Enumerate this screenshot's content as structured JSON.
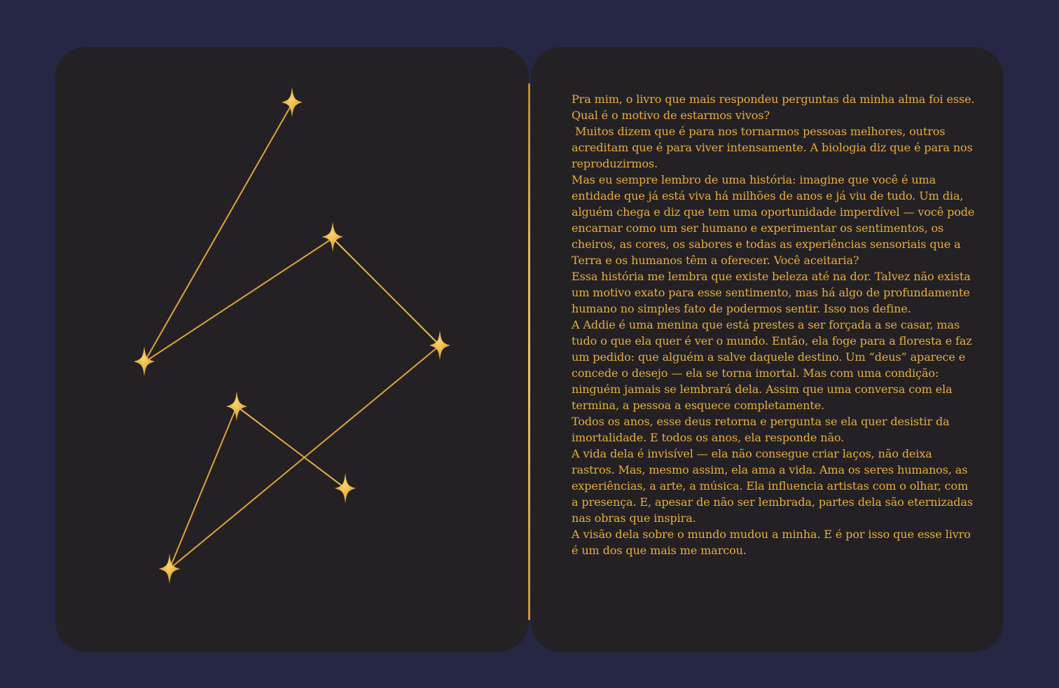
{
  "colors": {
    "background": "#262745",
    "page": "#242124",
    "gold": "#e3ad3f",
    "gold_light": "#f3c65a",
    "gold_dark": "#c08a2c"
  },
  "constellation": {
    "icon": "four-point-star-icon",
    "star_count": 7
  },
  "review": {
    "paragraphs": [
      "Pra mim, o livro que mais respondeu perguntas da minha alma foi esse.",
      "Qual é o motivo de estarmos vivos?",
      " Muitos dizem que é para nos tornarmos pessoas melhores, outros acreditam que é para viver intensamente. A biologia diz que é para nos reproduzirmos.",
      "Mas eu sempre lembro de uma história: imagine que você é uma entidade que já está viva há milhões de anos e já viu de tudo. Um dia, alguém chega e diz que tem uma oportunidade imperdível — você pode encarnar como um ser humano e experimentar os sentimentos, os cheiros, as cores, os sabores e todas as experiências sensoriais que a Terra e os humanos têm a oferecer. Você aceitaria?",
      "Essa história me lembra que existe beleza até na dor. Talvez não exista um motivo exato para esse sentimento, mas há algo de profundamente humano no simples fato de podermos sentir. Isso nos define.",
      "A Addie é uma menina que está prestes a ser forçada a se casar, mas tudo o que ela quer é ver o mundo. Então, ela foge para a floresta e faz um pedido: que alguém a salve daquele destino. Um “deus” aparece e concede o desejo — ela se torna imortal. Mas com uma condição: ninguém jamais se lembrará dela. Assim que uma conversa com ela termina, a pessoa a esquece completamente.",
      "Todos os anos, esse deus retorna e pergunta se ela quer desistir da imortalidade. E todos os anos, ela responde não.",
      "A vida dela é invisível — ela não consegue criar laços, não deixa rastros. Mas, mesmo assim, ela ama a vida. Ama os seres humanos, as experiências, a arte, a música. Ela influencia artistas com o olhar, com a presença. E, apesar de não ser lembrada, partes dela são eternizadas nas obras que inspira.",
      "A visão dela sobre o mundo mudou a minha. E é por isso que esse livro é um dos que mais me marcou."
    ]
  }
}
